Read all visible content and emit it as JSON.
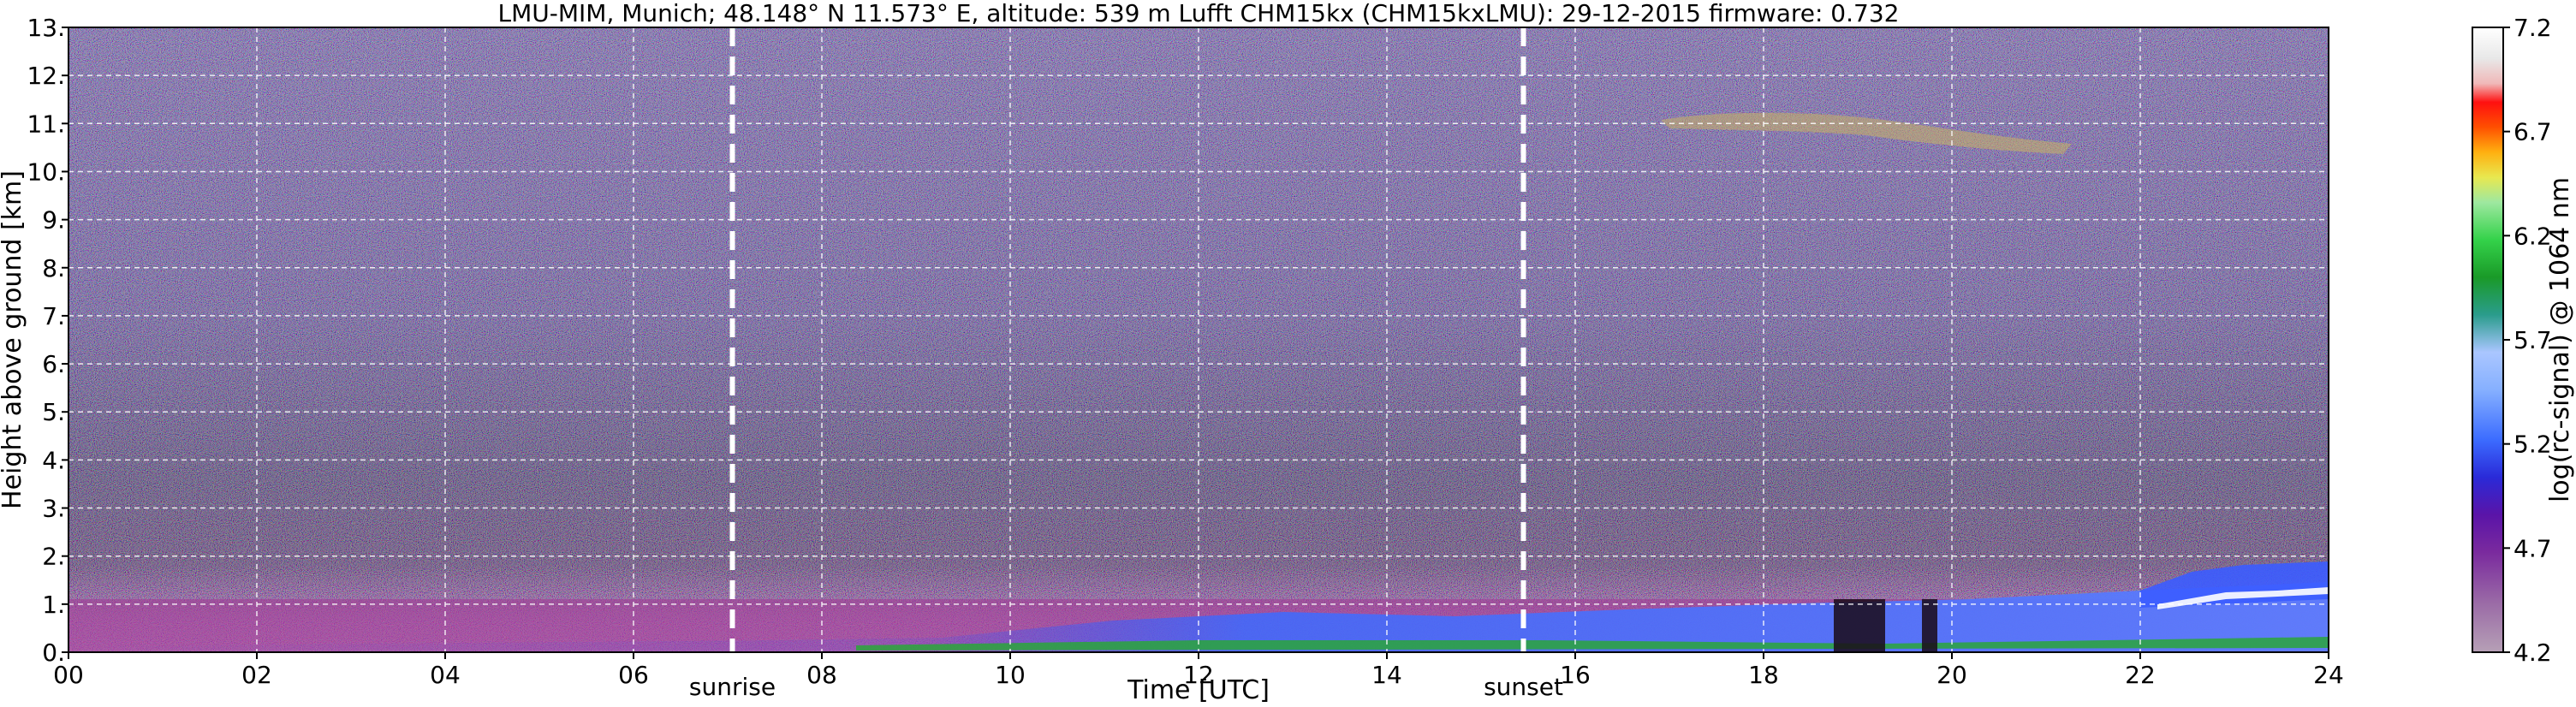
{
  "chart_data": {
    "type": "heatmap",
    "title": "LMU-MIM, Munich; 48.148° N 11.573° E, altitude: 539 m    Lufft CHM15kx (CHM15kxLMU): 29-12-2015    firmware: 0.732",
    "xlabel": "Time [UTC]",
    "ylabel": "Height above ground [km]",
    "xlim": [
      0,
      24
    ],
    "ylim": [
      0,
      13
    ],
    "x_ticks": [
      "00",
      "02",
      "04",
      "06",
      "08",
      "10",
      "12",
      "14",
      "16",
      "18",
      "20",
      "22",
      "24"
    ],
    "y_ticks": [
      "0.",
      "1.",
      "2.",
      "3.",
      "4.",
      "5.",
      "6.",
      "7.",
      "8.",
      "9.",
      "10.",
      "11.",
      "12.",
      "13."
    ],
    "grid": true,
    "markers": [
      {
        "name": "sunrise",
        "x": 7.05
      },
      {
        "name": "sunset",
        "x": 15.45
      }
    ],
    "colorbar": {
      "label": "log(rc-signal) @ 1064 nm",
      "range": [
        4.2,
        7.2
      ],
      "tick_labels": [
        "4.2",
        "4.7",
        "5.2",
        "5.7",
        "6.2",
        "6.7",
        "7.2"
      ]
    }
  }
}
